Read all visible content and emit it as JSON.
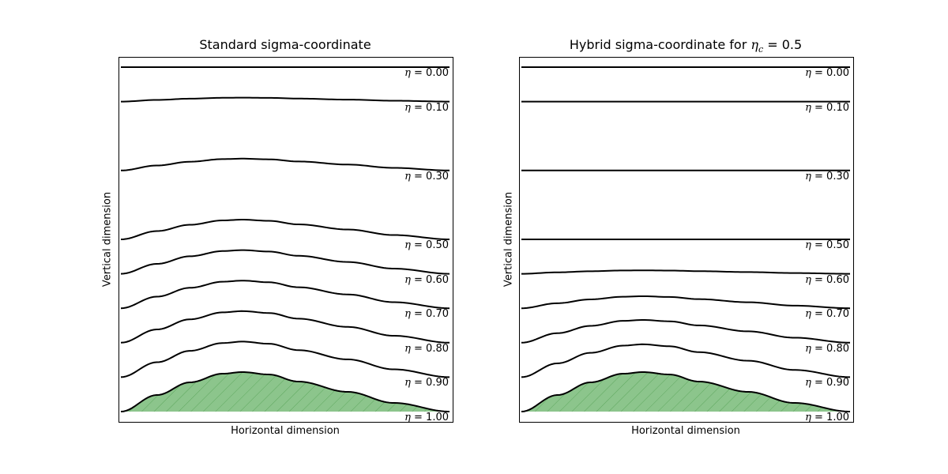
{
  "chart_data": [
    {
      "type": "line",
      "title": "Standard sigma-coordinate",
      "xlabel": "Horizontal dimension",
      "ylabel": "Vertical dimension",
      "coordinate": "standard",
      "grid": false,
      "ticks": "none",
      "levels": [
        0.0,
        0.1,
        0.3,
        0.5,
        0.6,
        0.7,
        0.8,
        0.9,
        1.0
      ],
      "level_labels": [
        "η = 0.00",
        "η = 0.10",
        "η = 0.30",
        "η = 0.50",
        "η = 0.60",
        "η = 0.70",
        "η = 0.80",
        "η = 0.90",
        "η = 1.00"
      ],
      "level_bump_fraction": [
        0.0,
        0.1,
        0.3,
        0.5,
        0.6,
        0.7,
        0.8,
        0.9,
        1.0
      ],
      "topography": {
        "fill": "#8cc58c",
        "hatch": "/",
        "hatch_color": "#5fa85f"
      }
    },
    {
      "type": "line",
      "title_prefix": "Hybrid sigma-coordinate for ",
      "title_eta": "η",
      "title_sub": "c",
      "title_suffix": " = 0.5",
      "title": "Hybrid sigma-coordinate for η_c = 0.5",
      "eta_c": 0.5,
      "xlabel": "Horizontal dimension",
      "ylabel": "Vertical dimension",
      "coordinate": "hybrid",
      "grid": false,
      "ticks": "none",
      "levels": [
        0.0,
        0.1,
        0.3,
        0.5,
        0.6,
        0.7,
        0.8,
        0.9,
        1.0
      ],
      "level_labels": [
        "η = 0.00",
        "η = 0.10",
        "η = 0.30",
        "η = 0.50",
        "η = 0.60",
        "η = 0.70",
        "η = 0.80",
        "η = 0.90",
        "η = 1.00"
      ],
      "level_bump_fraction": [
        0.0,
        0.0,
        0.0,
        0.0,
        0.088,
        0.304,
        0.576,
        0.832,
        1.0
      ],
      "topography": {
        "fill": "#8cc58c",
        "hatch": "/",
        "hatch_color": "#5fa85f"
      }
    }
  ],
  "topography_profile": {
    "x": [
      0.0,
      0.11,
      0.21,
      0.31,
      0.37,
      0.45,
      0.54,
      0.69,
      0.83,
      1.0
    ],
    "height": [
      0.0,
      0.42,
      0.74,
      0.96,
      1.0,
      0.94,
      0.76,
      0.5,
      0.22,
      0.0
    ]
  },
  "panels": [
    {
      "title": "Standard sigma-coordinate",
      "xlabel": "Horizontal dimension",
      "ylabel": "Vertical dimension"
    },
    {
      "title_prefix": "Hybrid sigma-coordinate for ",
      "title_eta": "η",
      "title_sub": "c",
      "title_suffix": " = 0.5",
      "xlabel": "Horizontal dimension",
      "ylabel": "Vertical dimension"
    }
  ],
  "colors": {
    "line": "#000000",
    "fill": "#8cc58c",
    "hatch": "#5fa85f",
    "frame": "#000000"
  }
}
